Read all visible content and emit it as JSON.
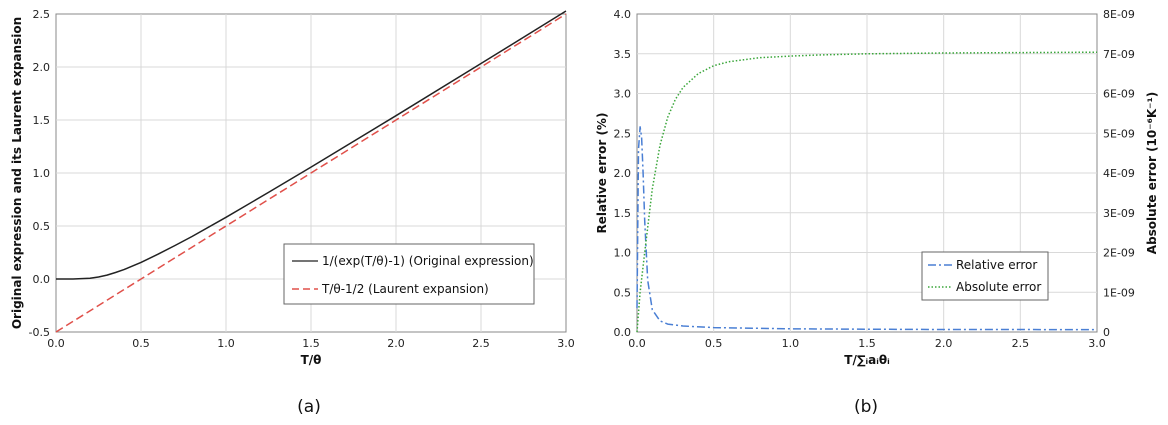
{
  "chart_data": [
    {
      "type": "line",
      "panel_label": "(a)",
      "xlabel": "T/θ",
      "ylabel": "Original expression and its Laurent expansion",
      "xlim": [
        0,
        3
      ],
      "ylim": [
        -0.5,
        2.5
      ],
      "xticks": [
        "0.0",
        "0.5",
        "1.0",
        "1.5",
        "2.0",
        "2.5",
        "3.0"
      ],
      "yticks": [
        "-0.5",
        "0.0",
        "0.5",
        "1.0",
        "1.5",
        "2.0",
        "2.5"
      ],
      "grid": true,
      "legend_position": "bottom-right",
      "series": [
        {
          "name": "1/(exp(T/θ)-1) (Original expression)",
          "color": "#222222",
          "style": "solid",
          "x": [
            0.0,
            0.1,
            0.2,
            0.25,
            0.3,
            0.35,
            0.4,
            0.5,
            0.6,
            0.7,
            0.8,
            1.0,
            1.25,
            1.5,
            2.0,
            2.5,
            3.0
          ],
          "y": [
            0.0,
            0.0,
            0.007,
            0.019,
            0.037,
            0.061,
            0.089,
            0.157,
            0.234,
            0.316,
            0.401,
            0.582,
            0.817,
            1.056,
            1.541,
            2.033,
            2.528
          ]
        },
        {
          "name": "T/θ-1/2 (Laurent expansion)",
          "color": "#e0504a",
          "style": "dashed",
          "x": [
            0.0,
            3.0
          ],
          "y": [
            -0.5,
            2.5
          ]
        }
      ]
    },
    {
      "type": "line",
      "panel_label": "(b)",
      "xlabel": "T/∑ᵢaᵢθᵢ",
      "ylabel": "Relative error (%)",
      "y2label": "Absolute error (10⁻⁶K⁻¹)",
      "xlim": [
        0,
        3
      ],
      "ylim": [
        0,
        4
      ],
      "y2lim": [
        0,
        8e-09
      ],
      "xticks": [
        "0.0",
        "0.5",
        "1.0",
        "1.5",
        "2.0",
        "2.5",
        "3.0"
      ],
      "yticks": [
        "0.0",
        "0.5",
        "1.0",
        "1.5",
        "2.0",
        "2.5",
        "3.0",
        "3.5",
        "4.0"
      ],
      "y2ticks": [
        "0",
        "1E-09",
        "2E-09",
        "3E-09",
        "4E-09",
        "5E-09",
        "6E-09",
        "7E-09",
        "8E-09"
      ],
      "grid": true,
      "legend_position": "bottom-right",
      "series": [
        {
          "name": "Relative error",
          "axis": "left",
          "color": "#4a7fd4",
          "style": "dashdot",
          "x": [
            0.0,
            0.01,
            0.02,
            0.03,
            0.04,
            0.05,
            0.07,
            0.1,
            0.15,
            0.2,
            0.3,
            0.5,
            1.0,
            1.5,
            2.0,
            3.0
          ],
          "y": [
            0.3,
            2.3,
            2.58,
            2.45,
            2.0,
            1.4,
            0.65,
            0.28,
            0.14,
            0.1,
            0.075,
            0.055,
            0.04,
            0.035,
            0.032,
            0.03
          ]
        },
        {
          "name": "Absolute error",
          "axis": "right",
          "color": "#3aa63a",
          "style": "dotted",
          "x": [
            0.0,
            0.02,
            0.05,
            0.1,
            0.15,
            0.2,
            0.25,
            0.3,
            0.4,
            0.5,
            0.6,
            0.8,
            1.0,
            1.2,
            1.5,
            2.0,
            2.5,
            3.0
          ],
          "y": [
            0.0,
            1e-09,
            2e-09,
            3.6e-09,
            4.7e-09,
            5.4e-09,
            5.85e-09,
            6.15e-09,
            6.5e-09,
            6.7e-09,
            6.8e-09,
            6.9e-09,
            6.94e-09,
            6.97e-09,
            7e-09,
            7.02e-09,
            7.03e-09,
            7.04e-09
          ]
        }
      ]
    }
  ]
}
